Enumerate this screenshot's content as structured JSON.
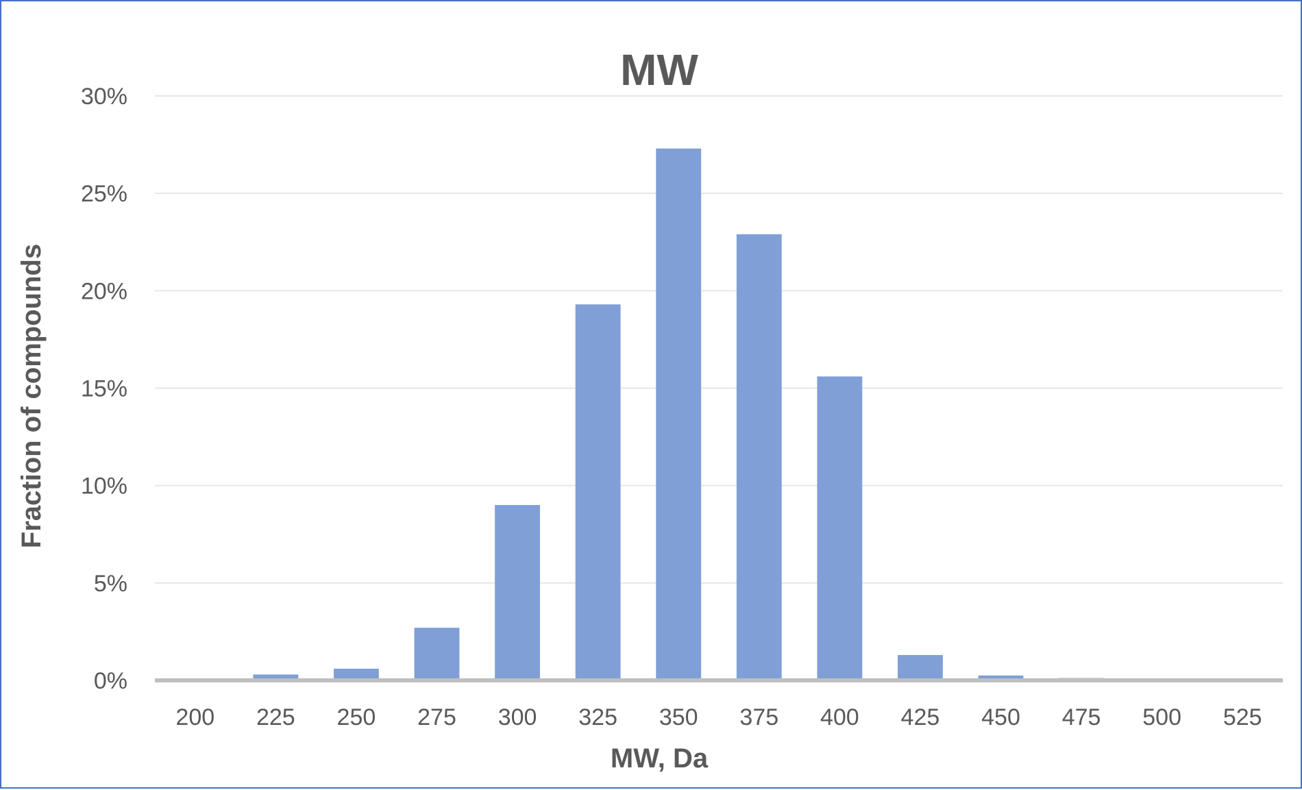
{
  "chart_data": {
    "type": "bar",
    "title": "MW",
    "xlabel": "MW, Da",
    "ylabel": "Fraction of compounds",
    "categories": [
      "200",
      "225",
      "250",
      "275",
      "300",
      "325",
      "350",
      "375",
      "400",
      "425",
      "450",
      "475",
      "500",
      "525"
    ],
    "values": [
      0.0,
      0.3,
      0.6,
      2.7,
      9.0,
      19.3,
      27.3,
      22.9,
      15.6,
      1.3,
      0.25,
      0.12,
      0.0,
      0.0
    ],
    "ylim": [
      0,
      30
    ],
    "yticks": [
      "0%",
      "5%",
      "10%",
      "15%",
      "20%",
      "25%",
      "30%"
    ],
    "ytick_values": [
      0,
      5,
      10,
      15,
      20,
      25,
      30
    ],
    "grid": true,
    "legend": "none",
    "bar_color": "#7F9FD6"
  }
}
